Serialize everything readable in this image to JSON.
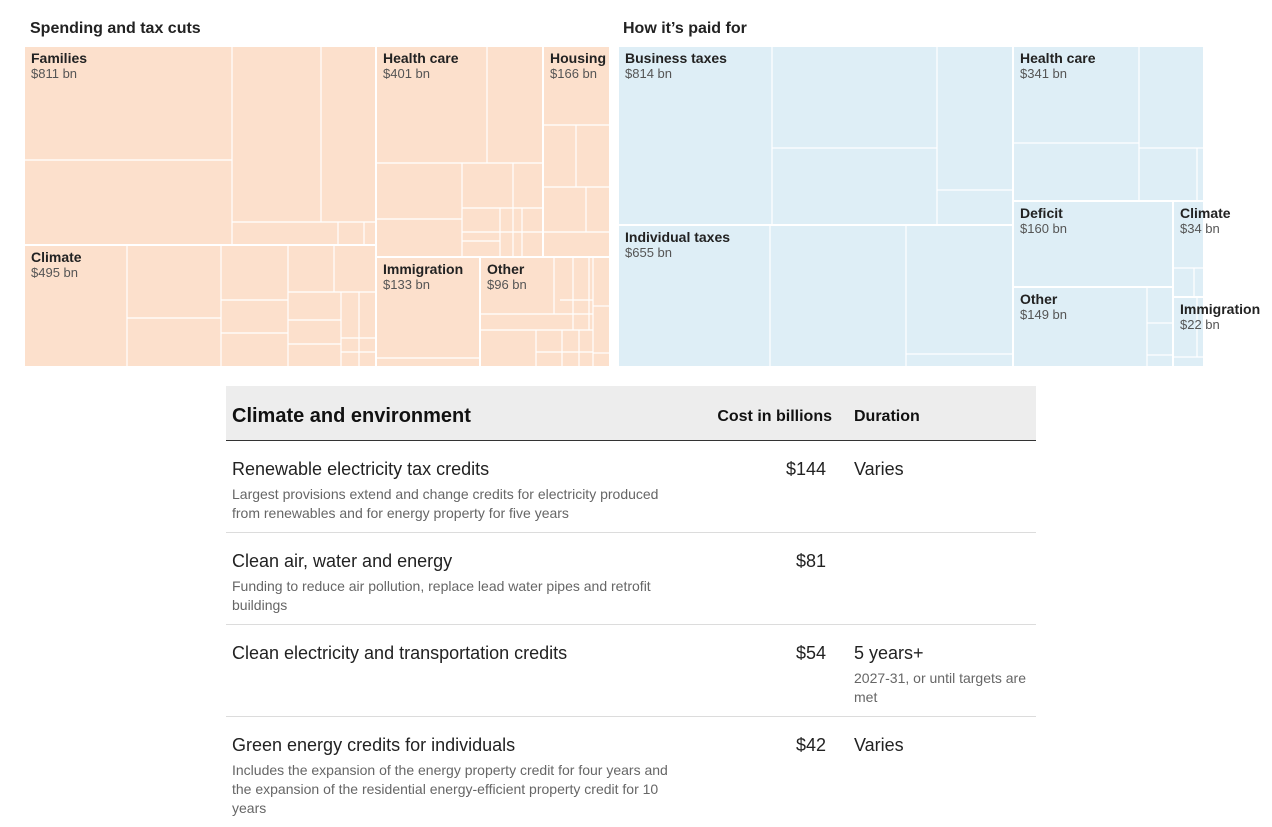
{
  "chart_data": [
    {
      "type": "treemap",
      "title": "Spending and tax cuts",
      "unit": "bn",
      "fill_color": "#fce0cc",
      "groups": [
        {
          "name": "Families",
          "label": "$811 bn",
          "value": 811
        },
        {
          "name": "Climate",
          "label": "$495 bn",
          "value": 495
        },
        {
          "name": "Health care",
          "label": "$401 bn",
          "value": 401
        },
        {
          "name": "Housing",
          "label": "$166 bn",
          "value": 166
        },
        {
          "name": "Immigration",
          "label": "$133 bn",
          "value": 133
        },
        {
          "name": "Other",
          "label": "$96 bn",
          "value": 96
        }
      ]
    },
    {
      "type": "treemap",
      "title": "How it’s paid for",
      "unit": "bn",
      "fill_color": "#deeef6",
      "groups": [
        {
          "name": "Business taxes",
          "label": "$814 bn",
          "value": 814
        },
        {
          "name": "Individual taxes",
          "label": "$655 bn",
          "value": 655
        },
        {
          "name": "Health care",
          "label": "$341 bn",
          "value": 341
        },
        {
          "name": "Deficit",
          "label": "$160 bn",
          "value": 160
        },
        {
          "name": "Other",
          "label": "$149 bn",
          "value": 149
        },
        {
          "name": "Climate",
          "label": "$34 bn",
          "value": 34
        },
        {
          "name": "Immigration",
          "label": "$22 bn",
          "value": 22
        }
      ]
    }
  ],
  "table": {
    "title": "Climate and environment",
    "cost_header": "Cost in billions",
    "duration_header": "Duration",
    "rows": [
      {
        "name": "Renewable electricity tax credits",
        "desc": "Largest provisions extend and change credits for electricity produced from renewables and for energy property for five years",
        "cost": "$144",
        "duration": "Varies",
        "duration_note": ""
      },
      {
        "name": "Clean air, water and energy",
        "desc": "Funding to reduce air pollution, replace lead water pipes and retrofit buildings",
        "cost": "$81",
        "duration": "",
        "duration_note": ""
      },
      {
        "name": "Clean electricity and transportation credits",
        "desc": "",
        "cost": "$54",
        "duration": "5 years+",
        "duration_note": "2027-31, or until targets are met"
      },
      {
        "name": "Green energy credits for individuals",
        "desc": "Includes the expansion of the energy property credit for four years and the expansion of the residential energy-efficient property credit for 10 years",
        "cost": "$42",
        "duration": "Varies",
        "duration_note": ""
      }
    ]
  }
}
